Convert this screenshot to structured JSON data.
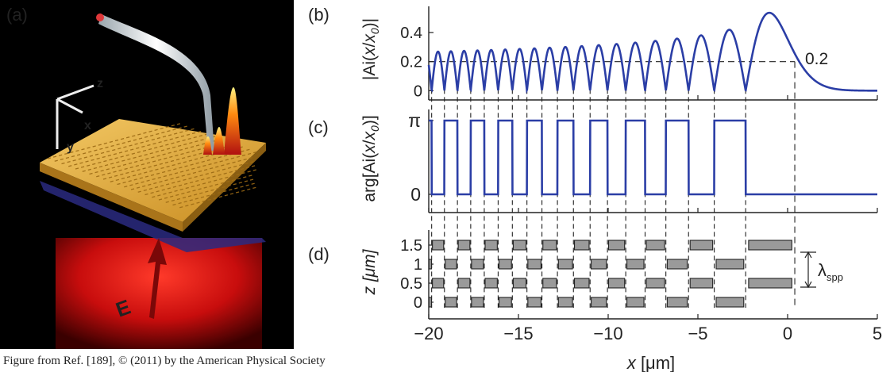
{
  "panel_labels": {
    "a": "(a)",
    "b": "(b)",
    "c": "(c)",
    "d": "(d)"
  },
  "illustration": {
    "axis_labels": {
      "x": "x",
      "y": "y",
      "z": "z"
    },
    "field_label": "E",
    "colors": {
      "background": "#000000",
      "gold": "#e0ab3c",
      "beam": "#d01010",
      "tip": "#e8eef2"
    }
  },
  "caption": "Figure from Ref. [189], © (2011) by the American Physical Society",
  "reference_value_label": "0.2",
  "period_label": {
    "symbol": "λ",
    "subscript": "spp"
  },
  "colors": {
    "curve": "#2b3ea6",
    "bar_fill": "#9a9a9a",
    "bar_stroke": "#222222",
    "dashes": "#222222"
  },
  "chart_data": [
    {
      "type": "line",
      "panel": "b",
      "description_function": "|Ai(x/x0)|",
      "ylabel": {
        "prefix": "|Ai(",
        "x": "x",
        "slash": "/",
        "x0": "x",
        "x0_sub": "0",
        "suffix": ")|"
      },
      "yticks": [
        "0",
        "0.2",
        "0.4"
      ],
      "ytick_values": [
        0,
        0.2,
        0.4
      ],
      "ylim": [
        -0.02,
        0.58
      ],
      "xlim": [
        -20,
        5
      ],
      "x0": 1.0,
      "reference_line": {
        "y": 0.2,
        "x": 0.4
      }
    },
    {
      "type": "line",
      "panel": "c",
      "description_function": "arg[Ai(x/x0)]",
      "ylabel": {
        "prefix": "arg[Ai(",
        "x": "x",
        "slash": "/",
        "x0": "x",
        "x0_sub": "0",
        "suffix": ")]"
      },
      "yticks": [
        "0",
        "π"
      ],
      "ytick_values": [
        0,
        3.14159
      ],
      "xlim": [
        -20,
        5
      ],
      "x0": 1.0
    },
    {
      "type": "bar",
      "panel": "d",
      "ylabel": "z [μm]",
      "yticks": [
        "0",
        "0.5",
        "1",
        "1.5"
      ],
      "ytick_values": [
        0,
        0.5,
        1,
        1.5
      ],
      "xlabel": "x [μm]",
      "xticks": [
        "−20",
        "−15",
        "−10",
        "−5",
        "0",
        "5"
      ],
      "xtick_values": [
        -20,
        -15,
        -10,
        -5,
        0,
        5
      ],
      "xlim": [
        -20,
        5
      ],
      "rows": [
        0,
        0.5,
        1,
        1.5
      ],
      "grating_end_x": 0.4,
      "period_um": 1.0
    }
  ]
}
